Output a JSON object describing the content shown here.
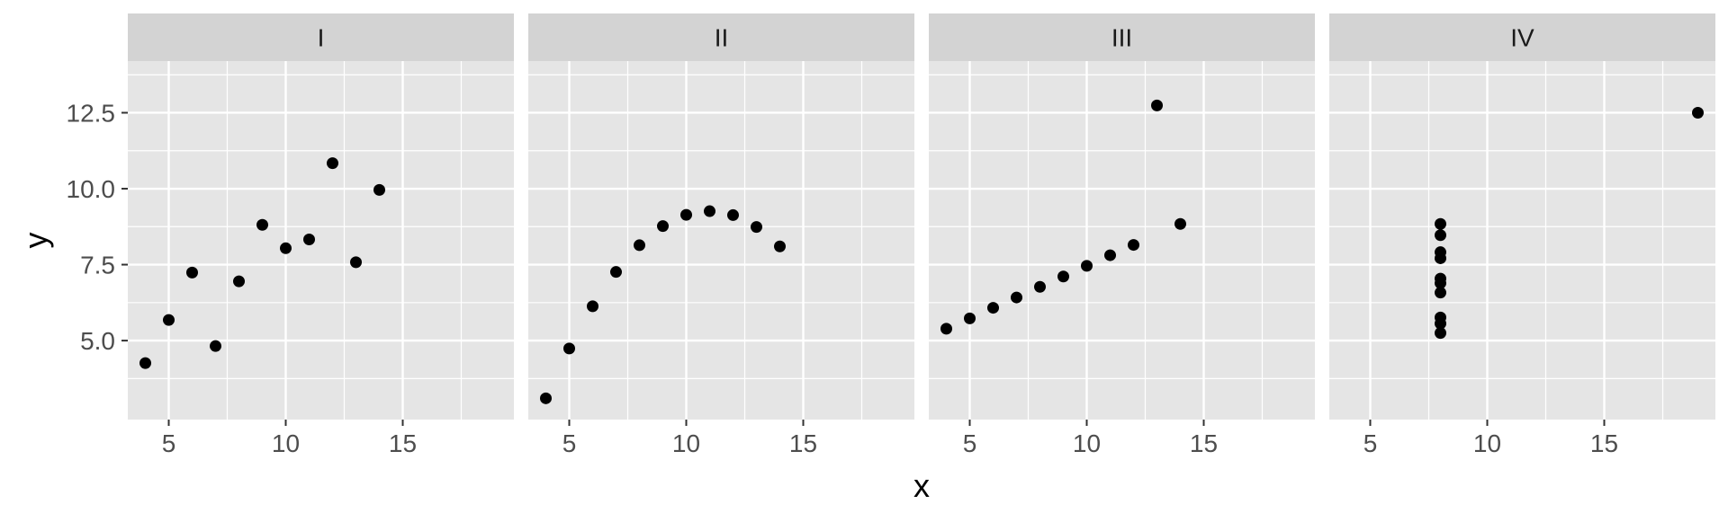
{
  "chart_data": {
    "type": "scatter",
    "layout": "facet-row",
    "xlabel": "x",
    "ylabel": "y",
    "xlim": [
      3.25,
      19.75
    ],
    "ylim": [
      2.4,
      14.2
    ],
    "x_ticks": [
      5,
      10,
      15
    ],
    "x_tick_labels": [
      "5",
      "10",
      "15"
    ],
    "y_ticks": [
      5.0,
      7.5,
      10.0,
      12.5
    ],
    "y_tick_labels": [
      "5.0",
      "7.5",
      "10.0",
      "12.5"
    ],
    "grid": true,
    "colors": {
      "panel_background": "#e5e5e5",
      "strip_background": "#d3d3d3",
      "grid": "#ffffff",
      "point": "#000000",
      "axis_text": "#4d4d4d",
      "axis_title": "#000000"
    },
    "panels": [
      {
        "name": "I",
        "points": [
          [
            10,
            8.04
          ],
          [
            8,
            6.95
          ],
          [
            13,
            7.58
          ],
          [
            9,
            8.81
          ],
          [
            11,
            8.33
          ],
          [
            14,
            9.96
          ],
          [
            6,
            7.24
          ],
          [
            4,
            4.26
          ],
          [
            12,
            10.84
          ],
          [
            7,
            4.82
          ],
          [
            5,
            5.68
          ]
        ]
      },
      {
        "name": "II",
        "points": [
          [
            10,
            9.14
          ],
          [
            8,
            8.14
          ],
          [
            13,
            8.74
          ],
          [
            9,
            8.77
          ],
          [
            11,
            9.26
          ],
          [
            14,
            8.1
          ],
          [
            6,
            6.13
          ],
          [
            4,
            3.1
          ],
          [
            12,
            9.13
          ],
          [
            7,
            7.26
          ],
          [
            5,
            4.74
          ]
        ]
      },
      {
        "name": "III",
        "points": [
          [
            10,
            7.46
          ],
          [
            8,
            6.77
          ],
          [
            13,
            12.74
          ],
          [
            9,
            7.11
          ],
          [
            11,
            7.81
          ],
          [
            14,
            8.84
          ],
          [
            6,
            6.08
          ],
          [
            4,
            5.39
          ],
          [
            12,
            8.15
          ],
          [
            7,
            6.42
          ],
          [
            5,
            5.73
          ]
        ]
      },
      {
        "name": "IV",
        "points": [
          [
            8,
            6.58
          ],
          [
            8,
            5.76
          ],
          [
            8,
            7.71
          ],
          [
            8,
            8.84
          ],
          [
            8,
            8.47
          ],
          [
            8,
            7.04
          ],
          [
            8,
            5.25
          ],
          [
            19,
            12.5
          ],
          [
            8,
            5.56
          ],
          [
            8,
            7.91
          ],
          [
            8,
            6.89
          ]
        ]
      }
    ]
  }
}
